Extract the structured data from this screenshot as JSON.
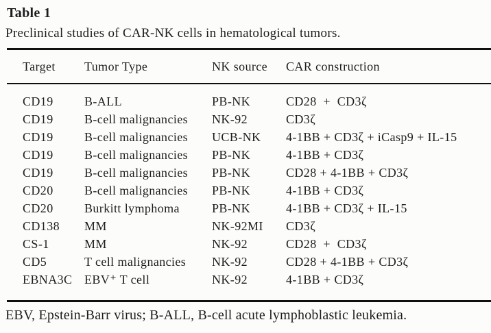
{
  "title": "Table 1",
  "caption": "Preclinical studies of CAR-NK cells in hematological tumors.",
  "table": {
    "columns": {
      "target": "Target",
      "tumor_type": "Tumor Type",
      "nk_source": "NK source",
      "car_construction": "CAR construction"
    },
    "rows": [
      {
        "target": "CD19",
        "tumor_type": "B-ALL",
        "nk_source": "PB-NK",
        "car_construction": "CD28  +  CD3ζ"
      },
      {
        "target": "CD19",
        "tumor_type": "B-cell malignancies",
        "nk_source": "NK-92",
        "car_construction": "CD3ζ"
      },
      {
        "target": "CD19",
        "tumor_type": "B-cell malignancies",
        "nk_source": "UCB-NK",
        "car_construction": "4-1BB + CD3ζ + iCasp9 + IL-15"
      },
      {
        "target": "CD19",
        "tumor_type": "B-cell malignancies",
        "nk_source": "PB-NK",
        "car_construction": "4-1BB + CD3ζ"
      },
      {
        "target": "CD19",
        "tumor_type": "B-cell malignancies",
        "nk_source": "PB-NK",
        "car_construction": "CD28 + 4-1BB + CD3ζ"
      },
      {
        "target": "CD20",
        "tumor_type": "B-cell malignancies",
        "nk_source": "PB-NK",
        "car_construction": "4-1BB + CD3ζ"
      },
      {
        "target": "CD20",
        "tumor_type": "Burkitt lymphoma",
        "nk_source": "PB-NK",
        "car_construction": "4-1BB + CD3ζ + IL-15"
      },
      {
        "target": "CD138",
        "tumor_type": "MM",
        "nk_source": "NK-92MI",
        "car_construction": "CD3ζ"
      },
      {
        "target": "CS-1",
        "tumor_type": "MM",
        "nk_source": "NK-92",
        "car_construction": "CD28  +  CD3ζ"
      },
      {
        "target": "CD5",
        "tumor_type": "T cell malignancies",
        "nk_source": "NK-92",
        "car_construction": "CD28 + 4-1BB + CD3ζ"
      },
      {
        "target": "EBNA3C",
        "tumor_type": "EBV⁺ T cell",
        "nk_source": "NK-92",
        "car_construction": "4-1BB + CD3ζ"
      }
    ]
  },
  "footnote": "EBV, Epstein-Barr virus; B-ALL, B-cell acute lymphoblastic leukemia.",
  "colors": {
    "background": "#fcfdfb",
    "text": "#1d1d1d",
    "rule": "#101010"
  }
}
